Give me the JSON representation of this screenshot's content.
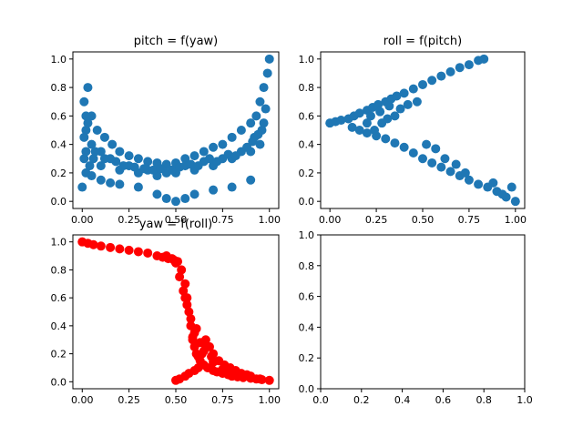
{
  "chart_data": [
    {
      "type": "scatter",
      "title": "pitch = f(yaw)",
      "xlabel": "",
      "ylabel": "",
      "xlim": [
        -0.05,
        1.05
      ],
      "ylim": [
        -0.05,
        1.05
      ],
      "xticks": [
        0.0,
        0.25,
        0.5,
        0.75,
        1.0
      ],
      "xtick_labels": [
        "0.00",
        "0.25",
        "0.50",
        "0.75",
        "1.00"
      ],
      "yticks": [
        0.0,
        0.2,
        0.4,
        0.6,
        0.8,
        1.0
      ],
      "ytick_labels": [
        "0.0",
        "0.2",
        "0.4",
        "0.6",
        "0.8",
        "1.0"
      ],
      "grid": false,
      "series": [
        {
          "color": "#1f77b4",
          "x": [
            0.0,
            0.01,
            0.02,
            0.01,
            0.03,
            0.05,
            0.08,
            0.12,
            0.16,
            0.2,
            0.25,
            0.3,
            0.35,
            0.4,
            0.45,
            0.5,
            0.55,
            0.6,
            0.65,
            0.7,
            0.75,
            0.8,
            0.85,
            0.9,
            0.93,
            0.95,
            0.97,
            0.99,
            1.0,
            0.98,
            0.96,
            0.02,
            0.05,
            0.1,
            0.15,
            0.2,
            0.3,
            0.4,
            0.45,
            0.5,
            0.55,
            0.6,
            0.7,
            0.8,
            0.9,
            0.02,
            0.06,
            0.1,
            0.2,
            0.3,
            0.4,
            0.5,
            0.6,
            0.7,
            0.8,
            0.9,
            0.95,
            0.01,
            0.03,
            0.05,
            0.1,
            0.15,
            0.25,
            0.35,
            0.45,
            0.55,
            0.65,
            0.75,
            0.85,
            0.92,
            0.97,
            0.02,
            0.04,
            0.07,
            0.12,
            0.18,
            0.22,
            0.28,
            0.33,
            0.38,
            0.42,
            0.48,
            0.52,
            0.58,
            0.62,
            0.68,
            0.72,
            0.78,
            0.82,
            0.88,
            0.91,
            0.94
          ],
          "y": [
            0.1,
            0.3,
            0.5,
            0.7,
            0.8,
            0.6,
            0.5,
            0.45,
            0.4,
            0.35,
            0.32,
            0.3,
            0.28,
            0.27,
            0.26,
            0.27,
            0.3,
            0.32,
            0.35,
            0.38,
            0.4,
            0.45,
            0.5,
            0.55,
            0.6,
            0.7,
            0.8,
            0.9,
            1.0,
            0.65,
            0.5,
            0.2,
            0.18,
            0.15,
            0.13,
            0.12,
            0.1,
            0.05,
            0.02,
            0.0,
            0.02,
            0.05,
            0.08,
            0.1,
            0.15,
            0.35,
            0.3,
            0.25,
            0.22,
            0.2,
            0.18,
            0.2,
            0.22,
            0.25,
            0.3,
            0.35,
            0.4,
            0.45,
            0.55,
            0.4,
            0.35,
            0.3,
            0.25,
            0.22,
            0.2,
            0.25,
            0.28,
            0.3,
            0.35,
            0.45,
            0.55,
            0.6,
            0.25,
            0.35,
            0.3,
            0.28,
            0.25,
            0.24,
            0.23,
            0.22,
            0.23,
            0.22,
            0.24,
            0.26,
            0.25,
            0.3,
            0.28,
            0.33,
            0.32,
            0.38,
            0.42,
            0.47
          ]
        }
      ]
    },
    {
      "type": "scatter",
      "title": "roll = f(pitch)",
      "xlabel": "",
      "ylabel": "",
      "xlim": [
        -0.05,
        1.05
      ],
      "ylim": [
        -0.05,
        1.05
      ],
      "xticks": [
        0.0,
        0.25,
        0.5,
        0.75,
        1.0
      ],
      "xtick_labels": [
        "0.00",
        "0.25",
        "0.50",
        "0.75",
        "1.00"
      ],
      "yticks": [
        0.0,
        0.2,
        0.4,
        0.6,
        0.8,
        1.0
      ],
      "ytick_labels": [
        "0.0",
        "0.2",
        "0.4",
        "0.6",
        "0.8",
        "1.0"
      ],
      "grid": false,
      "series": [
        {
          "color": "#1f77b4",
          "x": [
            0.0,
            0.03,
            0.06,
            0.1,
            0.13,
            0.16,
            0.2,
            0.23,
            0.26,
            0.3,
            0.33,
            0.36,
            0.4,
            0.45,
            0.5,
            0.55,
            0.6,
            0.65,
            0.7,
            0.75,
            0.8,
            0.83,
            0.12,
            0.16,
            0.2,
            0.25,
            0.3,
            0.35,
            0.4,
            0.45,
            0.5,
            0.55,
            0.6,
            0.65,
            0.7,
            0.75,
            0.8,
            0.85,
            0.9,
            0.95,
            1.0,
            0.98,
            0.93,
            0.88,
            0.22,
            0.27,
            0.32,
            0.2,
            0.24,
            0.28,
            0.31,
            0.35,
            0.38,
            0.42,
            0.47,
            0.52,
            0.57,
            0.62,
            0.68,
            0.73
          ],
          "y": [
            0.55,
            0.56,
            0.57,
            0.58,
            0.6,
            0.62,
            0.64,
            0.66,
            0.68,
            0.7,
            0.72,
            0.74,
            0.76,
            0.79,
            0.82,
            0.85,
            0.88,
            0.91,
            0.94,
            0.96,
            0.99,
            1.0,
            0.52,
            0.5,
            0.48,
            0.46,
            0.44,
            0.41,
            0.38,
            0.34,
            0.3,
            0.27,
            0.24,
            0.21,
            0.18,
            0.15,
            0.12,
            0.1,
            0.07,
            0.03,
            0.0,
            0.1,
            0.05,
            0.13,
            0.6,
            0.63,
            0.67,
            0.55,
            0.5,
            0.55,
            0.58,
            0.6,
            0.65,
            0.68,
            0.7,
            0.4,
            0.37,
            0.3,
            0.26,
            0.2
          ]
        }
      ]
    },
    {
      "type": "scatter",
      "title": "yaw = f(roll)",
      "xlabel": "",
      "ylabel": "",
      "xlim": [
        -0.05,
        1.05
      ],
      "ylim": [
        -0.05,
        1.05
      ],
      "xticks": [
        0.0,
        0.25,
        0.5,
        0.75,
        1.0
      ],
      "xtick_labels": [
        "0.00",
        "0.25",
        "0.50",
        "0.75",
        "1.00"
      ],
      "yticks": [
        0.0,
        0.2,
        0.4,
        0.6,
        0.8,
        1.0
      ],
      "ytick_labels": [
        "0.0",
        "0.2",
        "0.4",
        "0.6",
        "0.8",
        "1.0"
      ],
      "grid": false,
      "series": [
        {
          "color": "#ff0000",
          "x": [
            0.0,
            0.03,
            0.06,
            0.1,
            0.15,
            0.2,
            0.25,
            0.3,
            0.35,
            0.4,
            0.43,
            0.46,
            0.49,
            0.51,
            0.53,
            0.55,
            0.56,
            0.57,
            0.58,
            0.59,
            0.6,
            0.61,
            0.62,
            0.63,
            0.65,
            0.67,
            0.7,
            0.72,
            0.75,
            0.78,
            0.8,
            0.83,
            0.86,
            0.9,
            0.93,
            0.96,
            1.0,
            0.48,
            0.5,
            0.52,
            0.54,
            0.56,
            0.58,
            0.5,
            0.52,
            0.55,
            0.57,
            0.6,
            0.62,
            0.64,
            0.66,
            0.68,
            0.7,
            0.73,
            0.76,
            0.79,
            0.82,
            0.85,
            0.88,
            0.9,
            0.45,
            0.5,
            0.55,
            0.6,
            0.65,
            0.7,
            0.75,
            0.8,
            0.85,
            0.9,
            0.95,
            0.59,
            0.61,
            0.63,
            0.66,
            0.69
          ],
          "y": [
            1.0,
            0.99,
            0.98,
            0.97,
            0.96,
            0.95,
            0.94,
            0.93,
            0.92,
            0.9,
            0.89,
            0.88,
            0.87,
            0.86,
            0.8,
            0.7,
            0.6,
            0.5,
            0.4,
            0.3,
            0.25,
            0.2,
            0.18,
            0.15,
            0.12,
            0.1,
            0.08,
            0.07,
            0.06,
            0.05,
            0.04,
            0.035,
            0.03,
            0.025,
            0.02,
            0.015,
            0.01,
            0.88,
            0.85,
            0.75,
            0.65,
            0.55,
            0.45,
            0.01,
            0.02,
            0.04,
            0.06,
            0.08,
            0.1,
            0.2,
            0.3,
            0.25,
            0.2,
            0.15,
            0.12,
            0.1,
            0.08,
            0.06,
            0.05,
            0.04,
            0.9,
            0.85,
            0.6,
            0.35,
            0.22,
            0.14,
            0.09,
            0.06,
            0.04,
            0.03,
            0.02,
            0.32,
            0.38,
            0.28,
            0.26,
            0.18
          ]
        }
      ]
    },
    {
      "type": "scatter",
      "title": "",
      "xlabel": "",
      "ylabel": "",
      "xlim": [
        0.0,
        1.0
      ],
      "ylim": [
        0.0,
        1.0
      ],
      "xticks": [
        0.0,
        0.2,
        0.4,
        0.6,
        0.8,
        1.0
      ],
      "xtick_labels": [
        "0.0",
        "0.2",
        "0.4",
        "0.6",
        "0.8",
        "1.0"
      ],
      "yticks": [
        0.0,
        0.2,
        0.4,
        0.6,
        0.8,
        1.0
      ],
      "ytick_labels": [
        "0.0",
        "0.2",
        "0.4",
        "0.6",
        "0.8",
        "1.0"
      ],
      "grid": false,
      "series": []
    }
  ]
}
